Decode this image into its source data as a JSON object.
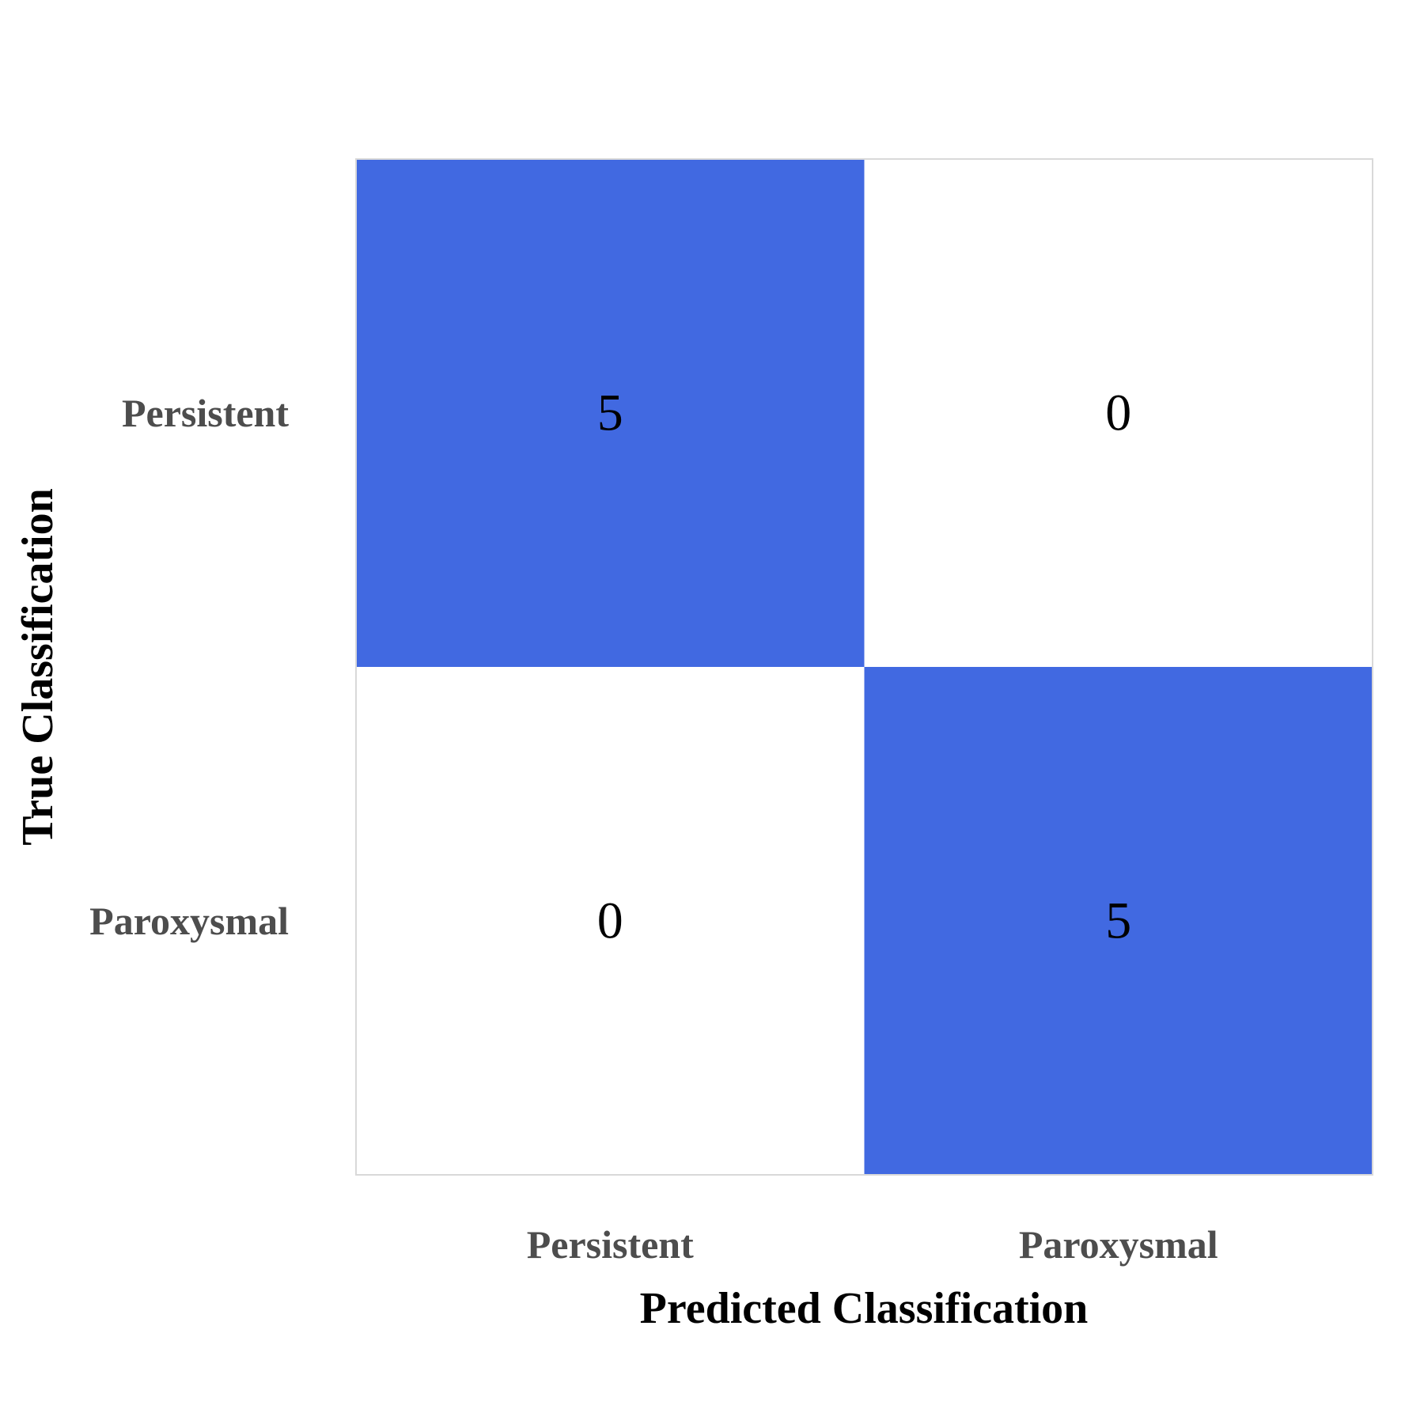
{
  "chart_data": {
    "type": "heatmap",
    "xlabel": "Predicted Classification",
    "ylabel": "True Classification",
    "x_categories": [
      "Persistent",
      "Paroxysmal"
    ],
    "y_categories": [
      "Persistent",
      "Paroxysmal"
    ],
    "values": [
      [
        5,
        0
      ],
      [
        0,
        5
      ]
    ],
    "color_low": "#ffffff",
    "color_high": "#4169e1",
    "grid": false,
    "legend": "none"
  }
}
